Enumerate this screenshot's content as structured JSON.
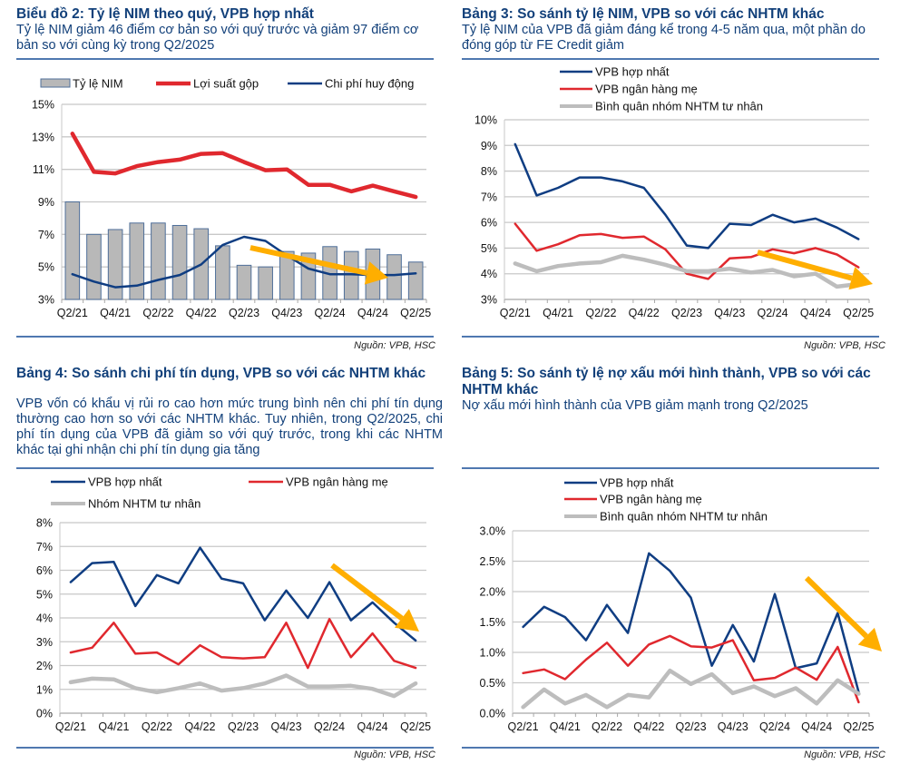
{
  "source_label": "Nguồn: VPB, HSC",
  "panels": {
    "p1": {
      "title": "Biểu đồ 2: Tỷ lệ NIM theo quý, VPB hợp nhất",
      "subtitle": "Tỷ lệ NIM giảm 46 điểm cơ bản so với quý trước và giảm 97 điểm cơ bản so với cùng kỳ trong Q2/2025"
    },
    "p2": {
      "title": "Bảng 3: So sánh tỷ lệ NIM, VPB so với các NHTM khác",
      "subtitle": "Tỷ lệ NIM của VPB đã giảm đáng kể trong 4-5 năm qua, một phần do đóng góp từ FE Credit giảm"
    },
    "p3": {
      "title": "Bảng 4: So sánh chi phí tín dụng, VPB so với các NHTM khác",
      "subtitle": "VPB vốn có khẩu vị rủi ro cao hơn mức trung bình nên chi phí tín dụng thường cao hơn so với các NHTM khác. Tuy nhiên, trong Q2/2025, chi phí tín dụng của VPB đã giảm so với quý trước, trong khi các NHTM khác tại ghi nhận chi phí tín dụng gia tăng"
    },
    "p4": {
      "title": "Bảng 5: So sánh tỷ lệ nợ xấu mới hình thành, VPB so với các NHTM khác",
      "subtitle": "Nợ xấu mới hình thành của VPB giảm mạnh trong Q2/2025"
    }
  },
  "colors": {
    "navy": "#0f3d82",
    "red": "#e0282e",
    "gray": "#bdbdbd",
    "bar_fill": "#b8b8b8",
    "bar_stroke": "#4f6f9a",
    "arrow": "#ffae00",
    "grid": "#c8c8c8"
  },
  "chart_data": [
    {
      "id": "nim_quarterly",
      "type": "bar+line",
      "title": "Biểu đồ 2: Tỷ lệ NIM theo quý, VPB hợp nhất",
      "categories": [
        "Q2/21",
        "Q3/21",
        "Q4/21",
        "Q1/22",
        "Q2/22",
        "Q3/22",
        "Q4/22",
        "Q1/23",
        "Q2/23",
        "Q3/23",
        "Q4/23",
        "Q1/24",
        "Q2/24",
        "Q3/24",
        "Q4/24",
        "Q1/25",
        "Q2/25"
      ],
      "tick_labels": [
        "Q2/21",
        "Q4/21",
        "Q2/22",
        "Q4/22",
        "Q2/23",
        "Q4/23",
        "Q2/24",
        "Q4/24",
        "Q2/25"
      ],
      "y_ticks": [
        "3%",
        "5%",
        "7%",
        "9%",
        "11%",
        "13%",
        "15%"
      ],
      "ylim": [
        3,
        15
      ],
      "grid": true,
      "legend_position": "top",
      "series": [
        {
          "name": "Tỷ lệ NIM",
          "kind": "bar",
          "color_key": "bar_fill",
          "values": [
            9.0,
            7.0,
            7.3,
            7.7,
            7.7,
            7.55,
            7.35,
            6.3,
            5.1,
            5.0,
            5.95,
            5.85,
            6.25,
            5.95,
            6.1,
            5.75,
            5.3
          ]
        },
        {
          "name": "Lợi suất gộp",
          "kind": "line",
          "color_key": "red",
          "values": [
            13.2,
            10.85,
            10.75,
            11.2,
            11.45,
            11.6,
            11.95,
            12.0,
            11.45,
            10.95,
            11.0,
            10.05,
            10.05,
            9.65,
            10.0,
            9.65,
            9.3
          ]
        },
        {
          "name": "Chi phí huy động",
          "kind": "line",
          "color_key": "navy",
          "values": [
            4.55,
            4.1,
            3.75,
            3.85,
            4.2,
            4.5,
            5.15,
            6.35,
            6.85,
            6.6,
            5.7,
            4.9,
            4.55,
            4.55,
            4.5,
            4.5,
            4.6
          ]
        }
      ],
      "annotations": [
        "down-trend-arrow"
      ]
    },
    {
      "id": "nim_comparison",
      "type": "line",
      "title": "Bảng 3: So sánh tỷ lệ NIM, VPB so với các NHTM khác",
      "categories": [
        "Q2/21",
        "Q3/21",
        "Q4/21",
        "Q1/22",
        "Q2/22",
        "Q3/22",
        "Q4/22",
        "Q1/23",
        "Q2/23",
        "Q3/23",
        "Q4/23",
        "Q1/24",
        "Q2/24",
        "Q3/24",
        "Q4/24",
        "Q1/25",
        "Q2/25"
      ],
      "tick_labels": [
        "Q2/21",
        "Q4/21",
        "Q2/22",
        "Q4/22",
        "Q2/23",
        "Q4/23",
        "Q2/24",
        "Q4/24",
        "Q2/25"
      ],
      "y_ticks": [
        "3%",
        "4%",
        "5%",
        "6%",
        "7%",
        "8%",
        "9%",
        "10%"
      ],
      "ylim": [
        3,
        10
      ],
      "grid": true,
      "legend_position": "top-left",
      "series": [
        {
          "name": "VPB hợp nhất",
          "color_key": "navy",
          "values": [
            9.05,
            7.05,
            7.35,
            7.75,
            7.75,
            7.6,
            7.35,
            6.3,
            5.1,
            5.0,
            5.95,
            5.9,
            6.3,
            6.0,
            6.15,
            5.8,
            5.35
          ]
        },
        {
          "name": "VPB ngân hàng mẹ",
          "color_key": "red",
          "values": [
            5.95,
            4.9,
            5.15,
            5.5,
            5.55,
            5.4,
            5.45,
            4.95,
            4.0,
            3.8,
            4.6,
            4.65,
            4.95,
            4.8,
            5.0,
            4.75,
            4.25
          ]
        },
        {
          "name": "Bình quân nhóm NHTM tư nhân",
          "color_key": "gray",
          "values": [
            4.4,
            4.1,
            4.3,
            4.4,
            4.45,
            4.7,
            4.55,
            4.35,
            4.1,
            4.1,
            4.2,
            4.05,
            4.15,
            3.9,
            4.0,
            3.5,
            3.6
          ]
        }
      ],
      "annotations": [
        "down-trend-arrow"
      ]
    },
    {
      "id": "credit_cost",
      "type": "line",
      "title": "Bảng 4: So sánh chi phí tín dụng, VPB so với các NHTM khác",
      "categories": [
        "Q2/21",
        "Q3/21",
        "Q4/21",
        "Q1/22",
        "Q2/22",
        "Q3/22",
        "Q4/22",
        "Q1/23",
        "Q2/23",
        "Q3/23",
        "Q4/23",
        "Q1/24",
        "Q2/24",
        "Q3/24",
        "Q4/24",
        "Q1/25",
        "Q2/25"
      ],
      "tick_labels": [
        "Q2/21",
        "Q4/21",
        "Q2/22",
        "Q4/22",
        "Q2/23",
        "Q4/23",
        "Q2/24",
        "Q4/24",
        "Q2/25"
      ],
      "y_ticks": [
        "0%",
        "1%",
        "2%",
        "3%",
        "4%",
        "5%",
        "6%",
        "7%",
        "8%"
      ],
      "ylim": [
        0,
        8
      ],
      "grid": true,
      "legend_position": "top",
      "series": [
        {
          "name": "VPB hợp nhất",
          "color_key": "navy",
          "values": [
            5.5,
            6.3,
            6.35,
            4.5,
            5.8,
            5.45,
            6.95,
            5.65,
            5.45,
            3.9,
            5.15,
            4.0,
            5.5,
            3.9,
            4.65,
            3.8,
            3.05
          ]
        },
        {
          "name": "VPB ngân hàng mẹ",
          "color_key": "red",
          "values": [
            2.55,
            2.75,
            3.8,
            2.5,
            2.55,
            2.05,
            2.85,
            2.35,
            2.3,
            2.35,
            3.8,
            1.9,
            3.95,
            2.35,
            3.35,
            2.2,
            1.9
          ]
        },
        {
          "name": "Nhóm NHTM tư nhân",
          "color_key": "gray",
          "values": [
            1.3,
            1.45,
            1.42,
            1.05,
            0.88,
            1.05,
            1.25,
            0.95,
            1.05,
            1.25,
            1.58,
            1.12,
            1.12,
            1.15,
            1.02,
            0.72,
            1.25
          ]
        }
      ],
      "annotations": [
        "down-trend-arrow"
      ]
    },
    {
      "id": "new_npl",
      "type": "line",
      "title": "Bảng 5: So sánh tỷ lệ nợ xấu mới hình thành, VPB so với các NHTM khác",
      "categories": [
        "Q2/21",
        "Q3/21",
        "Q4/21",
        "Q1/22",
        "Q2/22",
        "Q3/22",
        "Q4/22",
        "Q1/23",
        "Q2/23",
        "Q3/23",
        "Q4/23",
        "Q1/24",
        "Q2/24",
        "Q3/24",
        "Q4/24",
        "Q1/25",
        "Q2/25"
      ],
      "tick_labels": [
        "Q2/21",
        "Q4/21",
        "Q2/22",
        "Q4/22",
        "Q2/23",
        "Q4/23",
        "Q2/24",
        "Q4/24",
        "Q2/25"
      ],
      "y_ticks": [
        "0.0%",
        "0.5%",
        "1.0%",
        "1.5%",
        "2.0%",
        "2.5%",
        "3.0%"
      ],
      "ylim": [
        0,
        3
      ],
      "grid": true,
      "legend_position": "top-left",
      "series": [
        {
          "name": "VPB hợp nhất",
          "color_key": "navy",
          "values": [
            1.42,
            1.75,
            1.58,
            1.2,
            1.78,
            1.32,
            2.63,
            2.34,
            1.9,
            0.78,
            1.45,
            0.85,
            1.96,
            0.74,
            0.82,
            1.65,
            0.35
          ]
        },
        {
          "name": "VPB ngân hàng mẹ",
          "color_key": "red",
          "values": [
            0.66,
            0.72,
            0.56,
            0.88,
            1.16,
            0.78,
            1.13,
            1.27,
            1.1,
            1.08,
            1.2,
            0.54,
            0.58,
            0.75,
            0.55,
            1.09,
            0.18
          ]
        },
        {
          "name": "Bình quân nhóm NHTM tư nhân",
          "color_key": "gray",
          "values": [
            0.1,
            0.39,
            0.16,
            0.3,
            0.1,
            0.3,
            0.26,
            0.7,
            0.48,
            0.64,
            0.33,
            0.44,
            0.28,
            0.41,
            0.16,
            0.54,
            0.32
          ]
        }
      ],
      "annotations": [
        "down-trend-arrow"
      ]
    }
  ]
}
